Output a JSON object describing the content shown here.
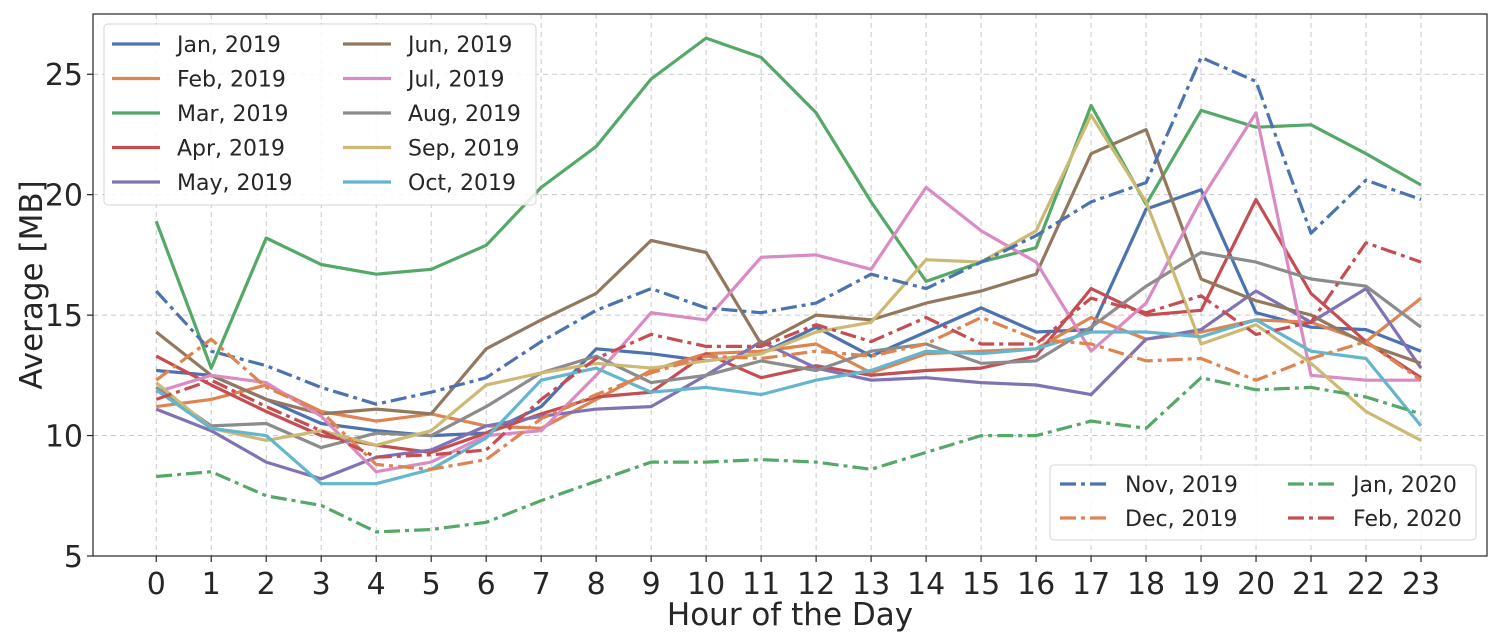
{
  "chart_data": {
    "type": "line",
    "title": "",
    "xlabel": "Hour of the Day",
    "ylabel": "Average [MB]",
    "x": [
      0,
      1,
      2,
      3,
      4,
      5,
      6,
      7,
      8,
      9,
      10,
      11,
      12,
      13,
      14,
      15,
      16,
      17,
      18,
      19,
      20,
      21,
      22,
      23
    ],
    "xlim": [
      -1.15,
      24.2
    ],
    "ylim": [
      5,
      27.5
    ],
    "yticks": [
      5,
      10,
      15,
      20,
      25
    ],
    "grid": true,
    "legends": [
      {
        "placement": "top-left",
        "columns": 2
      },
      {
        "placement": "bottom-right",
        "columns": 2
      }
    ],
    "series": [
      {
        "name": "Jan, 2019",
        "color": "#4c72b0",
        "style": "solid",
        "legend": 0,
        "values": [
          12.7,
          12.5,
          11.5,
          10.5,
          10.2,
          10.0,
          10.1,
          11.2,
          13.6,
          13.4,
          13.1,
          13.4,
          14.5,
          13.3,
          14.3,
          15.3,
          14.3,
          14.4,
          19.4,
          20.2,
          15.1,
          14.5,
          14.4,
          13.5
        ]
      },
      {
        "name": "Feb, 2019",
        "color": "#dd8452",
        "style": "solid",
        "legend": 0,
        "values": [
          11.2,
          11.5,
          12.1,
          11.0,
          10.6,
          10.9,
          10.4,
          10.3,
          11.5,
          12.7,
          13.4,
          13.5,
          13.8,
          12.6,
          13.4,
          13.5,
          13.6,
          14.9,
          14.0,
          14.3,
          14.8,
          14.7,
          13.9,
          15.7
        ]
      },
      {
        "name": "Mar, 2019",
        "color": "#55a868",
        "style": "solid",
        "legend": 0,
        "values": [
          18.9,
          12.8,
          18.2,
          17.1,
          16.7,
          16.9,
          17.9,
          20.3,
          22.0,
          24.8,
          26.5,
          25.7,
          23.4,
          19.7,
          16.4,
          17.2,
          17.8,
          23.7,
          19.6,
          23.5,
          22.8,
          22.9,
          21.7,
          20.4
        ]
      },
      {
        "name": "Apr, 2019",
        "color": "#c44e52",
        "style": "solid",
        "legend": 0,
        "values": [
          13.3,
          12.1,
          11.0,
          10.0,
          9.6,
          9.3,
          10.1,
          10.9,
          11.6,
          11.8,
          13.4,
          12.4,
          12.9,
          12.5,
          12.7,
          12.8,
          13.3,
          16.1,
          15.0,
          15.2,
          19.8,
          15.9,
          13.9,
          12.4
        ]
      },
      {
        "name": "May, 2019",
        "color": "#8172b3",
        "style": "solid",
        "legend": 0,
        "values": [
          11.1,
          10.2,
          8.9,
          8.2,
          9.1,
          9.4,
          10.4,
          10.8,
          11.1,
          11.2,
          12.5,
          13.9,
          12.8,
          12.3,
          12.4,
          12.2,
          12.1,
          11.7,
          14.0,
          14.4,
          16.0,
          14.7,
          16.1,
          12.8
        ]
      },
      {
        "name": "Jun, 2019",
        "color": "#937860",
        "style": "solid",
        "legend": 0,
        "values": [
          14.3,
          12.5,
          11.5,
          10.9,
          11.1,
          10.9,
          13.6,
          14.8,
          15.9,
          18.1,
          17.6,
          13.8,
          15.0,
          14.8,
          15.5,
          16.0,
          16.7,
          21.7,
          22.7,
          16.5,
          15.6,
          15.0,
          13.8,
          13.0
        ]
      },
      {
        "name": "Jul, 2019",
        "color": "#da8bc3",
        "style": "solid",
        "legend": 0,
        "values": [
          11.8,
          12.5,
          12.2,
          10.8,
          8.5,
          8.9,
          10.0,
          10.2,
          12.5,
          15.1,
          14.8,
          17.4,
          17.5,
          16.9,
          20.3,
          18.5,
          17.2,
          13.5,
          15.5,
          19.8,
          23.4,
          12.5,
          12.3,
          12.3
        ]
      },
      {
        "name": "Aug, 2019",
        "color": "#8c8c8c",
        "style": "solid",
        "legend": 0,
        "values": [
          12.0,
          10.4,
          10.5,
          9.5,
          10.1,
          10.0,
          11.2,
          12.6,
          13.3,
          12.2,
          12.5,
          13.1,
          12.7,
          13.5,
          13.8,
          13.0,
          13.1,
          14.5,
          16.2,
          17.6,
          17.2,
          16.5,
          16.2,
          14.5
        ]
      },
      {
        "name": "Sep, 2019",
        "color": "#ccb974",
        "style": "solid",
        "legend": 0,
        "values": [
          12.2,
          10.3,
          9.8,
          10.2,
          9.6,
          10.2,
          12.1,
          12.6,
          13.0,
          12.8,
          13.1,
          13.4,
          14.3,
          14.7,
          17.3,
          17.2,
          18.5,
          23.3,
          19.7,
          13.8,
          14.6,
          13.0,
          11.0,
          9.8
        ]
      },
      {
        "name": "Oct, 2019",
        "color": "#64b5cd",
        "style": "solid",
        "legend": 0,
        "values": [
          11.9,
          10.3,
          10.0,
          8.0,
          8.0,
          8.6,
          9.9,
          12.3,
          12.8,
          11.8,
          12.0,
          11.7,
          12.3,
          12.7,
          13.5,
          13.4,
          13.6,
          14.3,
          14.3,
          14.1,
          14.8,
          13.5,
          13.2,
          10.4
        ]
      },
      {
        "name": "Nov, 2019",
        "color": "#4c72b0",
        "style": "dashdot",
        "legend": 1,
        "values": [
          16.0,
          13.5,
          12.9,
          12.0,
          11.3,
          11.8,
          12.4,
          13.9,
          15.2,
          16.1,
          15.3,
          15.1,
          15.5,
          16.7,
          16.1,
          17.2,
          18.3,
          19.7,
          20.5,
          25.7,
          24.7,
          18.4,
          20.6,
          19.8
        ]
      },
      {
        "name": "Dec, 2019",
        "color": "#dd8452",
        "style": "dashdot",
        "legend": 1,
        "values": [
          12.3,
          14.0,
          12.0,
          11.0,
          8.8,
          8.6,
          9.0,
          10.7,
          11.7,
          12.6,
          13.3,
          13.2,
          13.5,
          13.3,
          13.8,
          14.9,
          14.0,
          13.8,
          13.1,
          13.2,
          12.3,
          13.2,
          13.9,
          12.3
        ]
      },
      {
        "name": "Jan, 2020",
        "color": "#55a868",
        "style": "dashdot",
        "legend": 1,
        "values": [
          8.3,
          8.5,
          7.5,
          7.1,
          6.0,
          6.1,
          6.4,
          7.3,
          8.1,
          8.9,
          8.9,
          9.0,
          8.9,
          8.6,
          9.3,
          10.0,
          10.0,
          10.6,
          10.3,
          12.4,
          11.9,
          12.0,
          11.6,
          10.9
        ]
      },
      {
        "name": "Feb, 2020",
        "color": "#c44e52",
        "style": "dashdot",
        "legend": 1,
        "values": [
          11.5,
          12.3,
          11.2,
          10.2,
          9.1,
          9.2,
          9.4,
          11.5,
          13.2,
          14.2,
          13.7,
          13.7,
          14.6,
          13.9,
          14.9,
          13.8,
          13.8,
          15.7,
          15.1,
          15.8,
          14.2,
          14.7,
          18.0,
          17.2
        ]
      }
    ]
  }
}
